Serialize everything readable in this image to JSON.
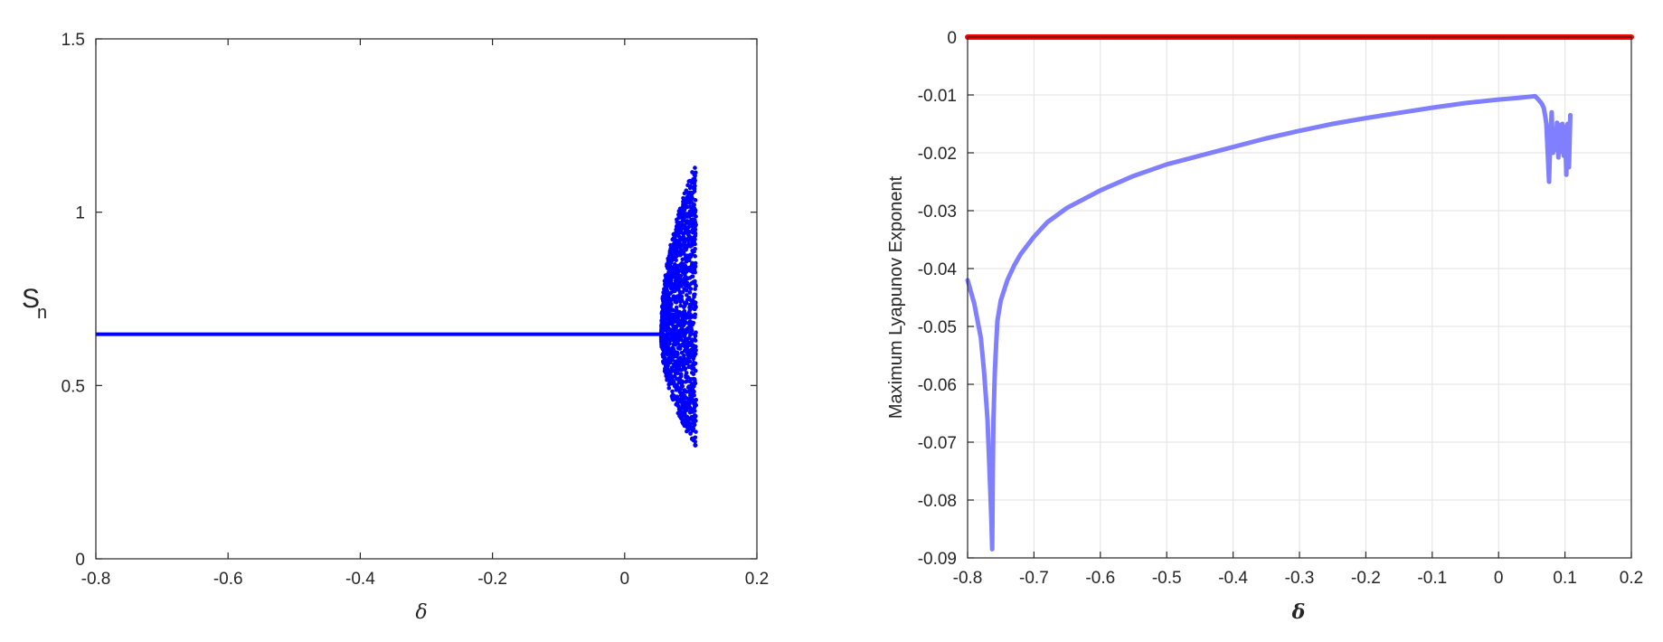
{
  "chart_data": [
    {
      "type": "scatter",
      "title": "",
      "xlabel": "δ",
      "ylabel_main": "S",
      "ylabel_sub": "n",
      "xlim": [
        -0.8,
        0.2
      ],
      "ylim": [
        0,
        1.5
      ],
      "xticks": [
        -0.8,
        -0.6,
        -0.4,
        -0.2,
        0,
        0.2
      ],
      "xtick_labels": [
        "-0.8",
        "-0.6",
        "-0.4",
        "-0.2",
        "0",
        "0.2"
      ],
      "yticks": [
        0,
        0.5,
        1,
        1.5
      ],
      "ytick_labels": [
        "0",
        "0.5",
        "1",
        "1.5"
      ],
      "grid": false,
      "color": "#0000ff",
      "series": [
        {
          "fixed_point_branch": {
            "x_start": -0.8,
            "x_end": 0.055,
            "y": 0.648
          },
          "chaotic_region": {
            "x_start": 0.055,
            "x_end": 0.108,
            "y_min": 0.32,
            "y_max": 1.145
          }
        }
      ]
    },
    {
      "type": "line",
      "title": "",
      "xlabel": "δ",
      "ylabel": "Maximum Lyapunov Exponent",
      "xlim": [
        -0.8,
        0.2
      ],
      "ylim": [
        -0.09,
        0
      ],
      "xticks": [
        -0.8,
        -0.7,
        -0.6,
        -0.5,
        -0.4,
        -0.3,
        -0.2,
        -0.1,
        0,
        0.1,
        0.2
      ],
      "xtick_labels": [
        "-0.8",
        "-0.7",
        "-0.6",
        "-0.5",
        "-0.4",
        "-0.3",
        "-0.2",
        "-0.1",
        "0",
        "0.1",
        "0.2"
      ],
      "yticks": [
        0,
        -0.01,
        -0.02,
        -0.03,
        -0.04,
        -0.05,
        -0.06,
        -0.07,
        -0.08,
        -0.09
      ],
      "ytick_labels": [
        "0",
        "-0.01",
        "-0.02",
        "-0.03",
        "-0.04",
        "-0.05",
        "-0.06",
        "-0.07",
        "-0.08",
        "-0.09"
      ],
      "grid": true,
      "series": [
        {
          "color": "#7f7fff",
          "x": [
            -0.8,
            -0.79,
            -0.78,
            -0.775,
            -0.77,
            -0.768,
            -0.766,
            -0.764,
            -0.763,
            -0.7625,
            -0.762,
            -0.761,
            -0.759,
            -0.757,
            -0.755,
            -0.75,
            -0.74,
            -0.73,
            -0.72,
            -0.7,
            -0.68,
            -0.65,
            -0.6,
            -0.55,
            -0.5,
            -0.45,
            -0.4,
            -0.35,
            -0.3,
            -0.25,
            -0.2,
            -0.15,
            -0.1,
            -0.05,
            0,
            0.03,
            0.055,
            0.06,
            0.065,
            0.068,
            0.07,
            0.072,
            0.074,
            0.076,
            0.078,
            0.08,
            0.082,
            0.084,
            0.086,
            0.088,
            0.09,
            0.092,
            0.094,
            0.096,
            0.098,
            0.1,
            0.102,
            0.104,
            0.106,
            0.108
          ],
          "y": [
            -0.042,
            -0.046,
            -0.052,
            -0.058,
            -0.066,
            -0.072,
            -0.078,
            -0.084,
            -0.0885,
            -0.083,
            -0.075,
            -0.066,
            -0.058,
            -0.053,
            -0.049,
            -0.0455,
            -0.042,
            -0.0395,
            -0.0375,
            -0.0345,
            -0.032,
            -0.0295,
            -0.0265,
            -0.024,
            -0.022,
            -0.0205,
            -0.019,
            -0.0175,
            -0.0162,
            -0.015,
            -0.014,
            -0.0131,
            -0.0122,
            -0.0114,
            -0.0108,
            -0.0105,
            -0.0102,
            -0.0108,
            -0.0115,
            -0.0122,
            -0.0135,
            -0.015,
            -0.02,
            -0.025,
            -0.017,
            -0.013,
            -0.02,
            -0.016,
            -0.0195,
            -0.0148,
            -0.0208,
            -0.0152,
            -0.0198,
            -0.015,
            -0.0205,
            -0.0155,
            -0.0238,
            -0.015,
            -0.0225,
            -0.0135
          ]
        },
        {
          "color": "#ff0000",
          "x": [
            -0.8,
            0.2
          ],
          "y": [
            0,
            0
          ]
        }
      ]
    }
  ]
}
